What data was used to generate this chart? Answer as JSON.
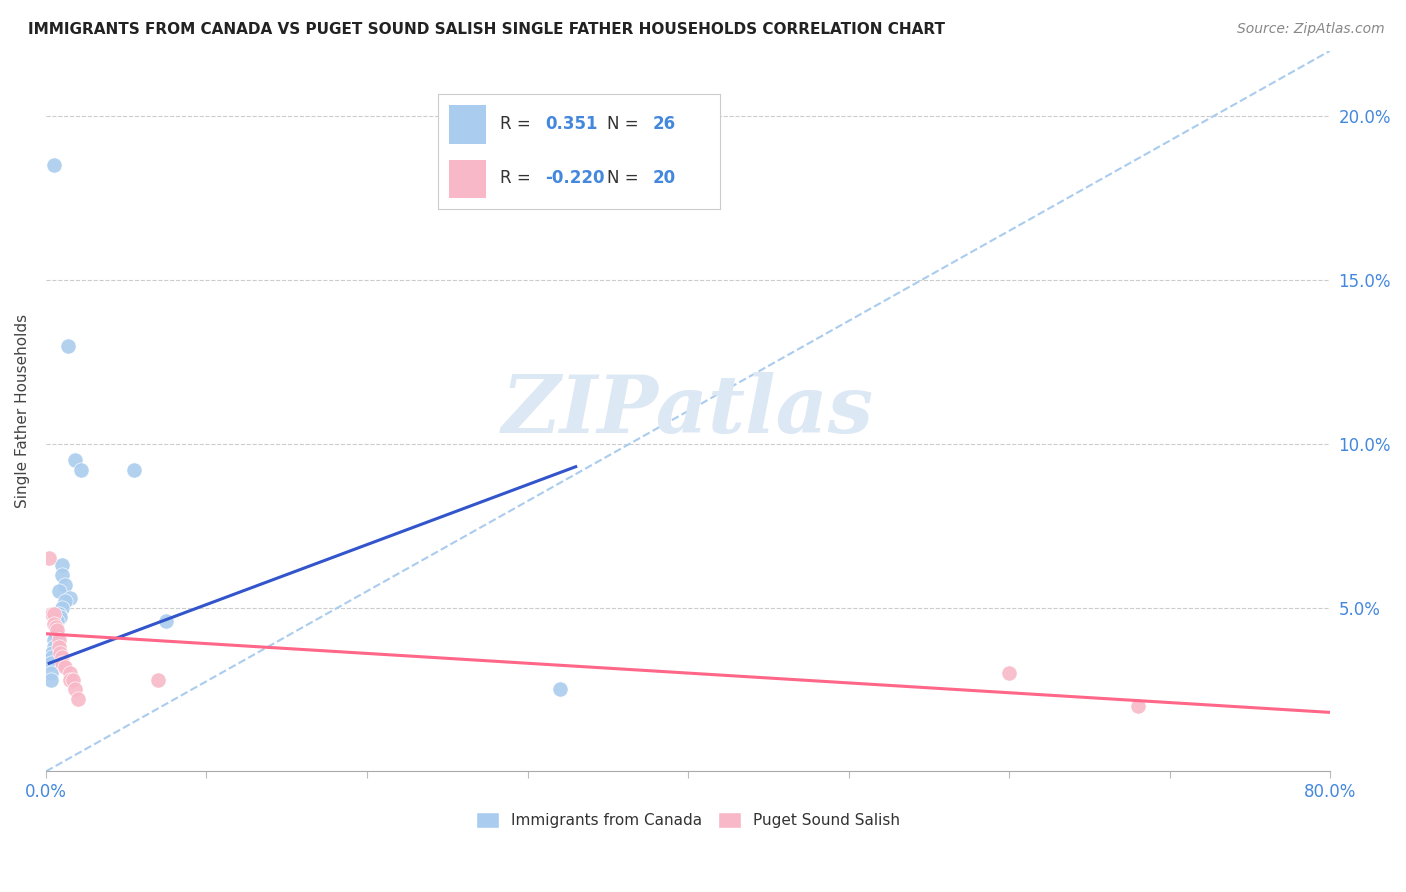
{
  "title": "IMMIGRANTS FROM CANADA VS PUGET SOUND SALISH SINGLE FATHER HOUSEHOLDS CORRELATION CHART",
  "source": "Source: ZipAtlas.com",
  "ylabel": "Single Father Households",
  "xlim": [
    0.0,
    0.8
  ],
  "ylim": [
    0.0,
    0.22
  ],
  "xticks": [
    0.0,
    0.1,
    0.2,
    0.3,
    0.4,
    0.5,
    0.6,
    0.7,
    0.8
  ],
  "yticks": [
    0.0,
    0.05,
    0.1,
    0.15,
    0.2
  ],
  "ytick_labels": [
    "0.0%",
    "5.0%",
    "10.0%",
    "15.0%",
    "20.0%"
  ],
  "blue_R": "0.351",
  "blue_N": "26",
  "pink_R": "-0.220",
  "pink_N": "20",
  "blue_color": "#aaccee",
  "pink_color": "#f8b8c8",
  "blue_line_color": "#3355cc",
  "pink_line_color": "#ff6688",
  "dashed_line_color": "#aaccee",
  "text_color": "#4488dd",
  "watermark_color": "#dde8f5",
  "blue_points": [
    [
      0.005,
      0.185
    ],
    [
      0.014,
      0.13
    ],
    [
      0.018,
      0.095
    ],
    [
      0.022,
      0.092
    ],
    [
      0.01,
      0.063
    ],
    [
      0.01,
      0.06
    ],
    [
      0.012,
      0.057
    ],
    [
      0.008,
      0.055
    ],
    [
      0.015,
      0.053
    ],
    [
      0.012,
      0.052
    ],
    [
      0.01,
      0.05
    ],
    [
      0.008,
      0.048
    ],
    [
      0.009,
      0.047
    ],
    [
      0.007,
      0.046
    ],
    [
      0.006,
      0.044
    ],
    [
      0.006,
      0.042
    ],
    [
      0.005,
      0.04
    ],
    [
      0.005,
      0.038
    ],
    [
      0.004,
      0.036
    ],
    [
      0.004,
      0.035
    ],
    [
      0.003,
      0.033
    ],
    [
      0.003,
      0.03
    ],
    [
      0.003,
      0.028
    ],
    [
      0.055,
      0.092
    ],
    [
      0.075,
      0.046
    ],
    [
      0.32,
      0.025
    ]
  ],
  "pink_points": [
    [
      0.002,
      0.065
    ],
    [
      0.004,
      0.048
    ],
    [
      0.005,
      0.048
    ],
    [
      0.005,
      0.045
    ],
    [
      0.006,
      0.044
    ],
    [
      0.007,
      0.043
    ],
    [
      0.008,
      0.04
    ],
    [
      0.008,
      0.038
    ],
    [
      0.009,
      0.036
    ],
    [
      0.01,
      0.035
    ],
    [
      0.01,
      0.033
    ],
    [
      0.012,
      0.032
    ],
    [
      0.015,
      0.03
    ],
    [
      0.015,
      0.028
    ],
    [
      0.017,
      0.028
    ],
    [
      0.018,
      0.025
    ],
    [
      0.02,
      0.022
    ],
    [
      0.07,
      0.028
    ],
    [
      0.6,
      0.03
    ],
    [
      0.68,
      0.02
    ]
  ],
  "blue_trend_x": [
    0.002,
    0.33
  ],
  "blue_trend_y": [
    0.033,
    0.093
  ],
  "pink_trend_x": [
    0.0,
    0.8
  ],
  "pink_trend_y": [
    0.042,
    0.018
  ],
  "dashed_trend_x": [
    0.0,
    0.8
  ],
  "dashed_trend_y": [
    0.0,
    0.22
  ]
}
